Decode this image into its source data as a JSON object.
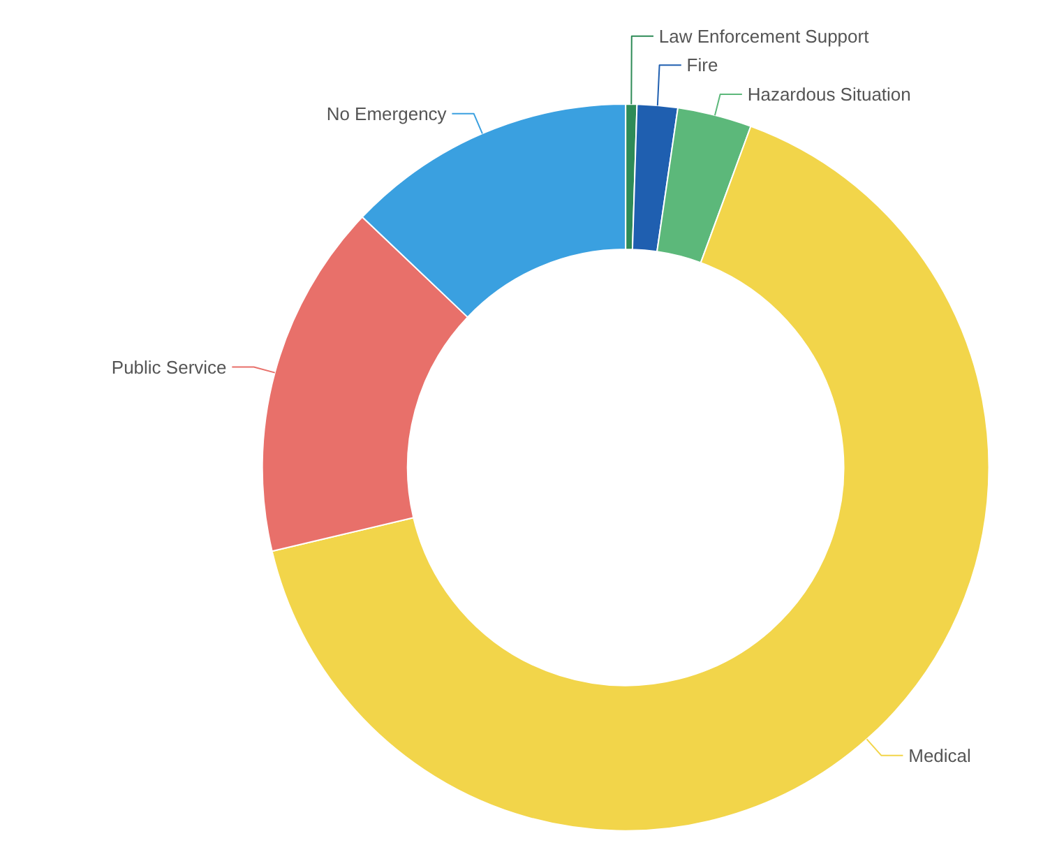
{
  "chart_data": {
    "type": "donut",
    "categories": [
      "Law Enforcement Support",
      "Fire",
      "Hazardous Situation",
      "Medical",
      "Public Service",
      "No Emergency"
    ],
    "values": [
      0.5,
      1.8,
      3.3,
      65.7,
      15.8,
      12.9
    ],
    "colors": [
      "#2e8b57",
      "#1f5fb0",
      "#5cb87a",
      "#f2d54a",
      "#e8706a",
      "#3aa0e0"
    ]
  }
}
